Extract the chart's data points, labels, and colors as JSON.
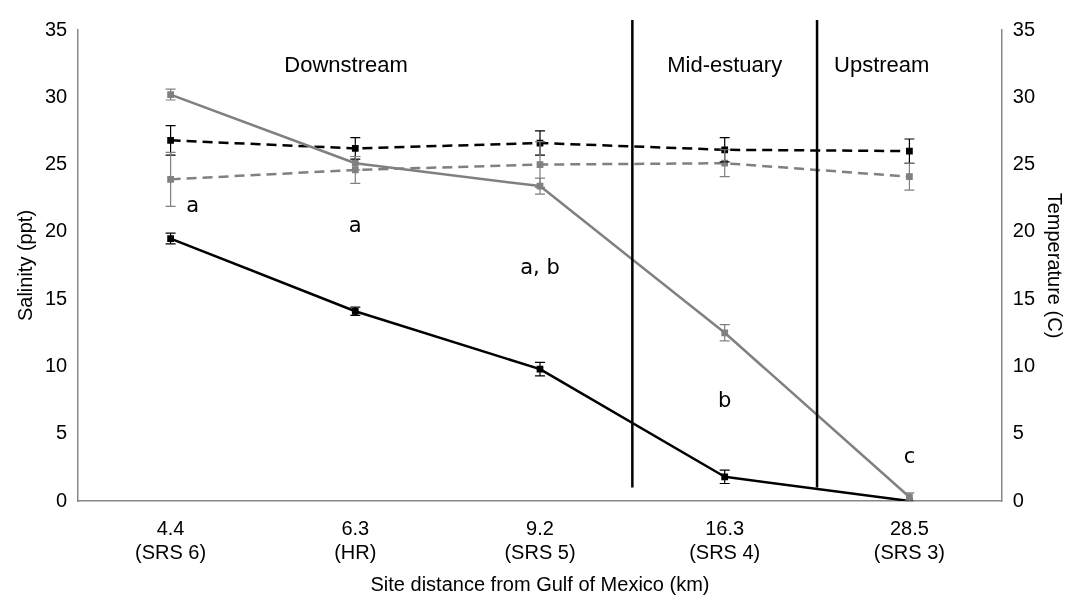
{
  "chart_data": {
    "type": "line",
    "xlabel": "Site distance from Gulf of Mexico (km)",
    "ylabel": "Salinity (ppt)",
    "y2label": "Temperature (C)",
    "categories": [
      "4.4\n(SRS 6)",
      "6.3\n(HR)",
      "9.2\n(SRS 5)",
      "16.3\n(SRS 4)",
      "28.5\n(SRS 3)"
    ],
    "series": [
      {
        "color": "#808080",
        "values": [
          30.2,
          25.1,
          23.4,
          12.5,
          0.3
        ],
        "errors": [
          0.4,
          0.5,
          0.6,
          0.6,
          0.3
        ],
        "line_style": "solid"
      },
      {
        "color": "#000000",
        "values": [
          19.5,
          14.1,
          9.8,
          1.8,
          0.0
        ],
        "errors": [
          0.4,
          0.3,
          0.5,
          0.5,
          null
        ],
        "line_style": "solid"
      },
      {
        "color": "#000000",
        "values": [
          26.8,
          26.2,
          26.6,
          26.1,
          26.0
        ],
        "errors": [
          1.1,
          0.8,
          0.9,
          0.9,
          0.9
        ],
        "axis": "y2",
        "line_style": "dashed"
      },
      {
        "color": "#808080",
        "values": [
          23.9,
          24.6,
          25.0,
          25.1,
          24.1
        ],
        "errors": [
          2.0,
          1.0,
          1.7,
          1.0,
          1.0
        ],
        "axis": "y2",
        "line_style": "dashed"
      }
    ],
    "ylim": [
      0,
      35
    ],
    "yticks": [
      0,
      5,
      10,
      15,
      20,
      25,
      30,
      35
    ],
    "y2lim": [
      0,
      35
    ],
    "y2ticks": [
      0,
      5,
      10,
      15,
      20,
      25,
      30,
      35
    ],
    "marker": "square",
    "grid": false,
    "legend": false,
    "annotations": [
      "Downstream",
      "Mid-estuary",
      "Upstream",
      "a",
      "a",
      "a, b",
      "b",
      "c"
    ]
  }
}
